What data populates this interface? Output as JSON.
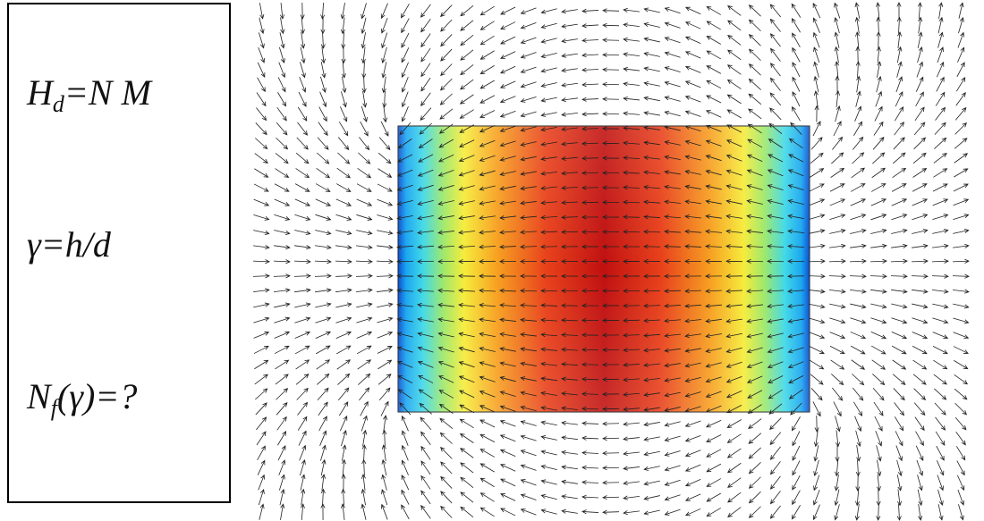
{
  "equations": [
    {
      "base": "H",
      "sub": "d",
      "rest": "=N M"
    },
    {
      "base": "γ=h/d"
    },
    {
      "base": "N",
      "sub": "f",
      "rest": "(γ)=?"
    }
  ]
}
